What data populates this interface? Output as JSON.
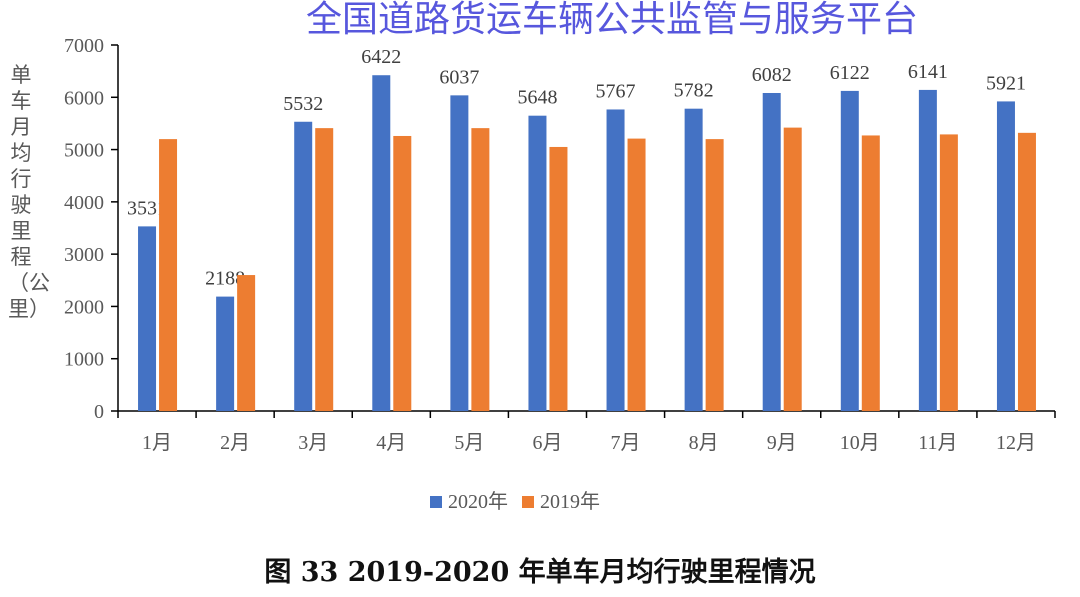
{
  "chart_data": {
    "type": "bar",
    "title": "图 33  2019-2020 年单车月均行驶里程情况",
    "ylabel": "单车月均行驶里程（公里）",
    "xlabel": "",
    "ylim": [
      0,
      7000
    ],
    "yticks": [
      0,
      1000,
      2000,
      3000,
      4000,
      5000,
      6000,
      7000
    ],
    "grid": false,
    "legend_placement": "bottom",
    "categories": [
      "1月",
      "2月",
      "3月",
      "4月",
      "5月",
      "6月",
      "7月",
      "8月",
      "9月",
      "10月",
      "11月",
      "12月"
    ],
    "series": [
      {
        "name": "2020年",
        "color": "#4472C4",
        "values": [
          3531,
          2188,
          5532,
          6422,
          6037,
          5648,
          5767,
          5782,
          6082,
          6122,
          6141,
          5921
        ],
        "labels": [
          "3531",
          "2188",
          "5532",
          "6422",
          "6037",
          "5648",
          "5767",
          "5782",
          "6082",
          "6122",
          "6141",
          "5921"
        ]
      },
      {
        "name": "2019年",
        "color": "#ED7D31",
        "values": [
          5200,
          2600,
          5410,
          5260,
          5410,
          5050,
          5210,
          5200,
          5420,
          5270,
          5290,
          5320
        ]
      }
    ]
  },
  "watermark": "全国道路货运车辆公共监管与服务平台"
}
